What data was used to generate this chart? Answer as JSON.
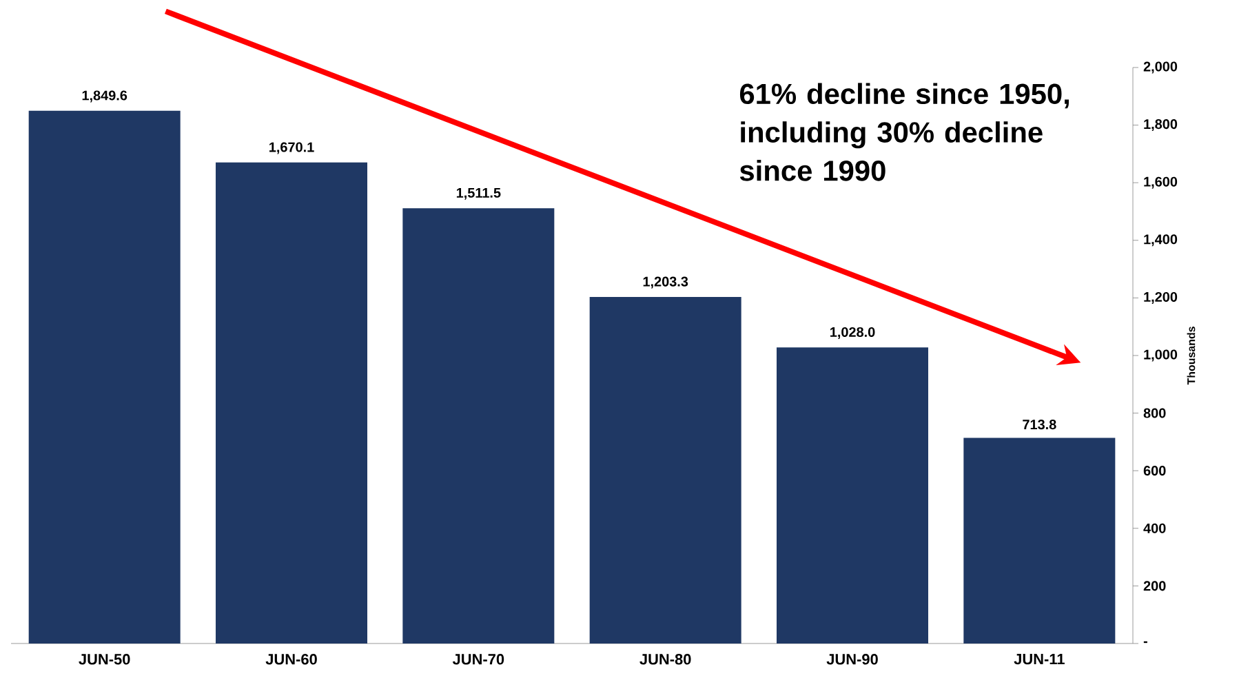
{
  "chart_data": {
    "type": "bar",
    "categories": [
      "JUN-50",
      "JUN-60",
      "JUN-70",
      "JUN-80",
      "JUN-90",
      "JUN-11"
    ],
    "values": [
      1849.6,
      1670.1,
      1511.5,
      1203.3,
      1028.0,
      713.8
    ],
    "value_labels": [
      "1,849.6",
      "1,670.1",
      "1,511.5",
      "1,203.3",
      "1,028.0",
      "713.8"
    ],
    "color": "#1f3864",
    "ylabel": "Thousands",
    "ylim": [
      0,
      2000
    ],
    "yticks": [
      {
        "value": 0,
        "label": "-"
      },
      200,
      400,
      600,
      800,
      {
        "value": 1000,
        "label": "1,000"
      },
      {
        "value": 1200,
        "label": "1,200"
      },
      {
        "value": 1400,
        "label": "1,400"
      },
      {
        "value": 1600,
        "label": "1,600"
      },
      {
        "value": 1800,
        "label": "1,800"
      },
      {
        "value": 2000,
        "label": "2,000"
      }
    ],
    "annotations": [
      "61% decline since 1950, including 30% decline since 1990"
    ]
  }
}
